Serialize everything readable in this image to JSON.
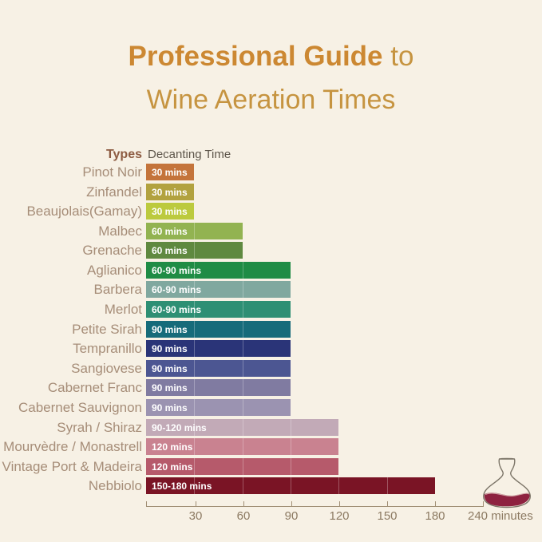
{
  "title": {
    "line1_bold": "Professional Guide",
    "line1_rest": " to",
    "line2": "Wine Aeration Times",
    "bold_color": "#CC8832",
    "regular_color": "#C69440"
  },
  "chart_header": {
    "types_label": "Types",
    "decanting_label": "Decanting Time"
  },
  "chart_data": {
    "type": "bar",
    "orientation": "horizontal",
    "x_unit": "minutes",
    "x_ticks": [
      30,
      60,
      90,
      120,
      150,
      180,
      240
    ],
    "xlim": [
      0,
      240
    ],
    "grid": "subtle white separators inside bars every 30 minutes",
    "rows": [
      {
        "label": "Pinot Noir",
        "value_label": "30 mins",
        "end_min": 30,
        "color": "#C4743B"
      },
      {
        "label": "Zinfandel",
        "value_label": "30 mins",
        "end_min": 30,
        "color": "#B2A23F"
      },
      {
        "label": "Beaujolais(Gamay)",
        "value_label": "30 mins",
        "end_min": 30,
        "color": "#BCCA3E"
      },
      {
        "label": "Malbec",
        "value_label": "60 mins",
        "end_min": 60,
        "color": "#92B351"
      },
      {
        "label": "Grenache",
        "value_label": "60 mins",
        "end_min": 60,
        "color": "#5F8940"
      },
      {
        "label": "Aglianico",
        "value_label": "60-90 mins",
        "end_min": 90,
        "color": "#1F8C45"
      },
      {
        "label": "Barbera",
        "value_label": "60-90 mins",
        "end_min": 90,
        "color": "#80A89F"
      },
      {
        "label": "Merlot",
        "value_label": "60-90 mins",
        "end_min": 90,
        "color": "#2E8F74"
      },
      {
        "label": "Petite Sirah",
        "value_label": "90 mins",
        "end_min": 90,
        "color": "#166B7A"
      },
      {
        "label": "Tempranillo",
        "value_label": "90 mins",
        "end_min": 90,
        "color": "#2A3478"
      },
      {
        "label": "Sangiovese",
        "value_label": "90 mins",
        "end_min": 90,
        "color": "#4C5692"
      },
      {
        "label": "Cabernet Franc",
        "value_label": "90 mins",
        "end_min": 90,
        "color": "#807BA1"
      },
      {
        "label": "Cabernet Sauvignon",
        "value_label": "90 mins",
        "end_min": 90,
        "color": "#9B93B1"
      },
      {
        "label": "Syrah / Shiraz",
        "value_label": "90-120 mins",
        "end_min": 120,
        "color": "#C2AAB7"
      },
      {
        "label": "Mourvèdre / Monastrell",
        "value_label": "120 mins",
        "end_min": 120,
        "color": "#C98290"
      },
      {
        "label": "Vintage Port & Madeira",
        "value_label": "120 mins",
        "end_min": 120,
        "color": "#B65A6B"
      },
      {
        "label": "Nebbiolo",
        "value_label": "150-180 mins",
        "end_min": 180,
        "color": "#7A1425"
      }
    ]
  },
  "axis": {
    "tick_labels": [
      "30",
      "60",
      "90",
      "120",
      "150",
      "180"
    ],
    "end_label": "240 minutes"
  },
  "decanter": {
    "outline_color": "#7C7568",
    "wine_color": "#8E2240"
  },
  "colors": {
    "background": "#F7F1E5",
    "label_text": "#A68D78",
    "types_header": "#8D5B41",
    "decanting_header": "#5D554A",
    "axis_text": "#8C7A62",
    "axis_line": "#A08E74",
    "bar_text": "#FFFFFF"
  }
}
